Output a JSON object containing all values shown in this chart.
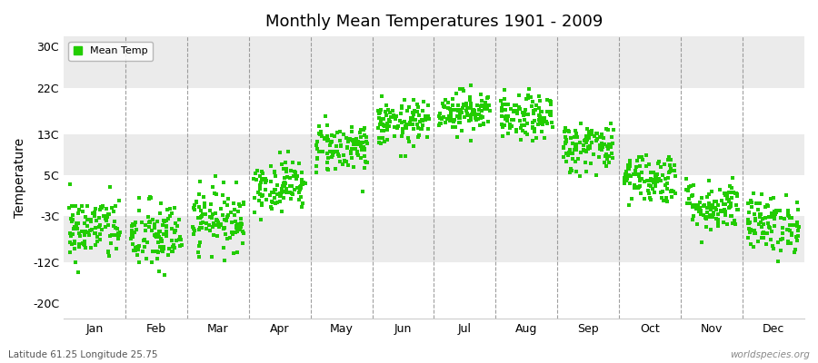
{
  "title": "Monthly Mean Temperatures 1901 - 2009",
  "ylabel": "Temperature",
  "subtitle_left": "Latitude 61.25 Longitude 25.75",
  "subtitle_right": "worldspecies.org",
  "legend_label": "Mean Temp",
  "dot_color": "#22cc00",
  "background_color": "#ffffff",
  "plot_bg_color": "#ffffff",
  "stripe_color_light": "#ffffff",
  "stripe_color_dark": "#ebebeb",
  "yticks": [
    -20,
    -12,
    -3,
    5,
    13,
    22,
    30
  ],
  "ytick_labels": [
    "-20C",
    "-12C",
    "-3C",
    "5C",
    "13C",
    "22C",
    "30C"
  ],
  "ylim": [
    -23,
    32
  ],
  "months": [
    "Jan",
    "Feb",
    "Mar",
    "Apr",
    "May",
    "Jun",
    "Jul",
    "Aug",
    "Sep",
    "Oct",
    "Nov",
    "Dec"
  ],
  "month_means": [
    -5.5,
    -7.0,
    -3.5,
    3.0,
    10.5,
    15.0,
    17.5,
    16.0,
    10.5,
    4.5,
    -1.0,
    -4.5
  ],
  "month_stds": [
    3.2,
    3.5,
    3.0,
    2.5,
    2.5,
    2.2,
    2.0,
    2.2,
    2.5,
    2.5,
    2.5,
    2.8
  ],
  "n_years": 109,
  "seed": 42
}
